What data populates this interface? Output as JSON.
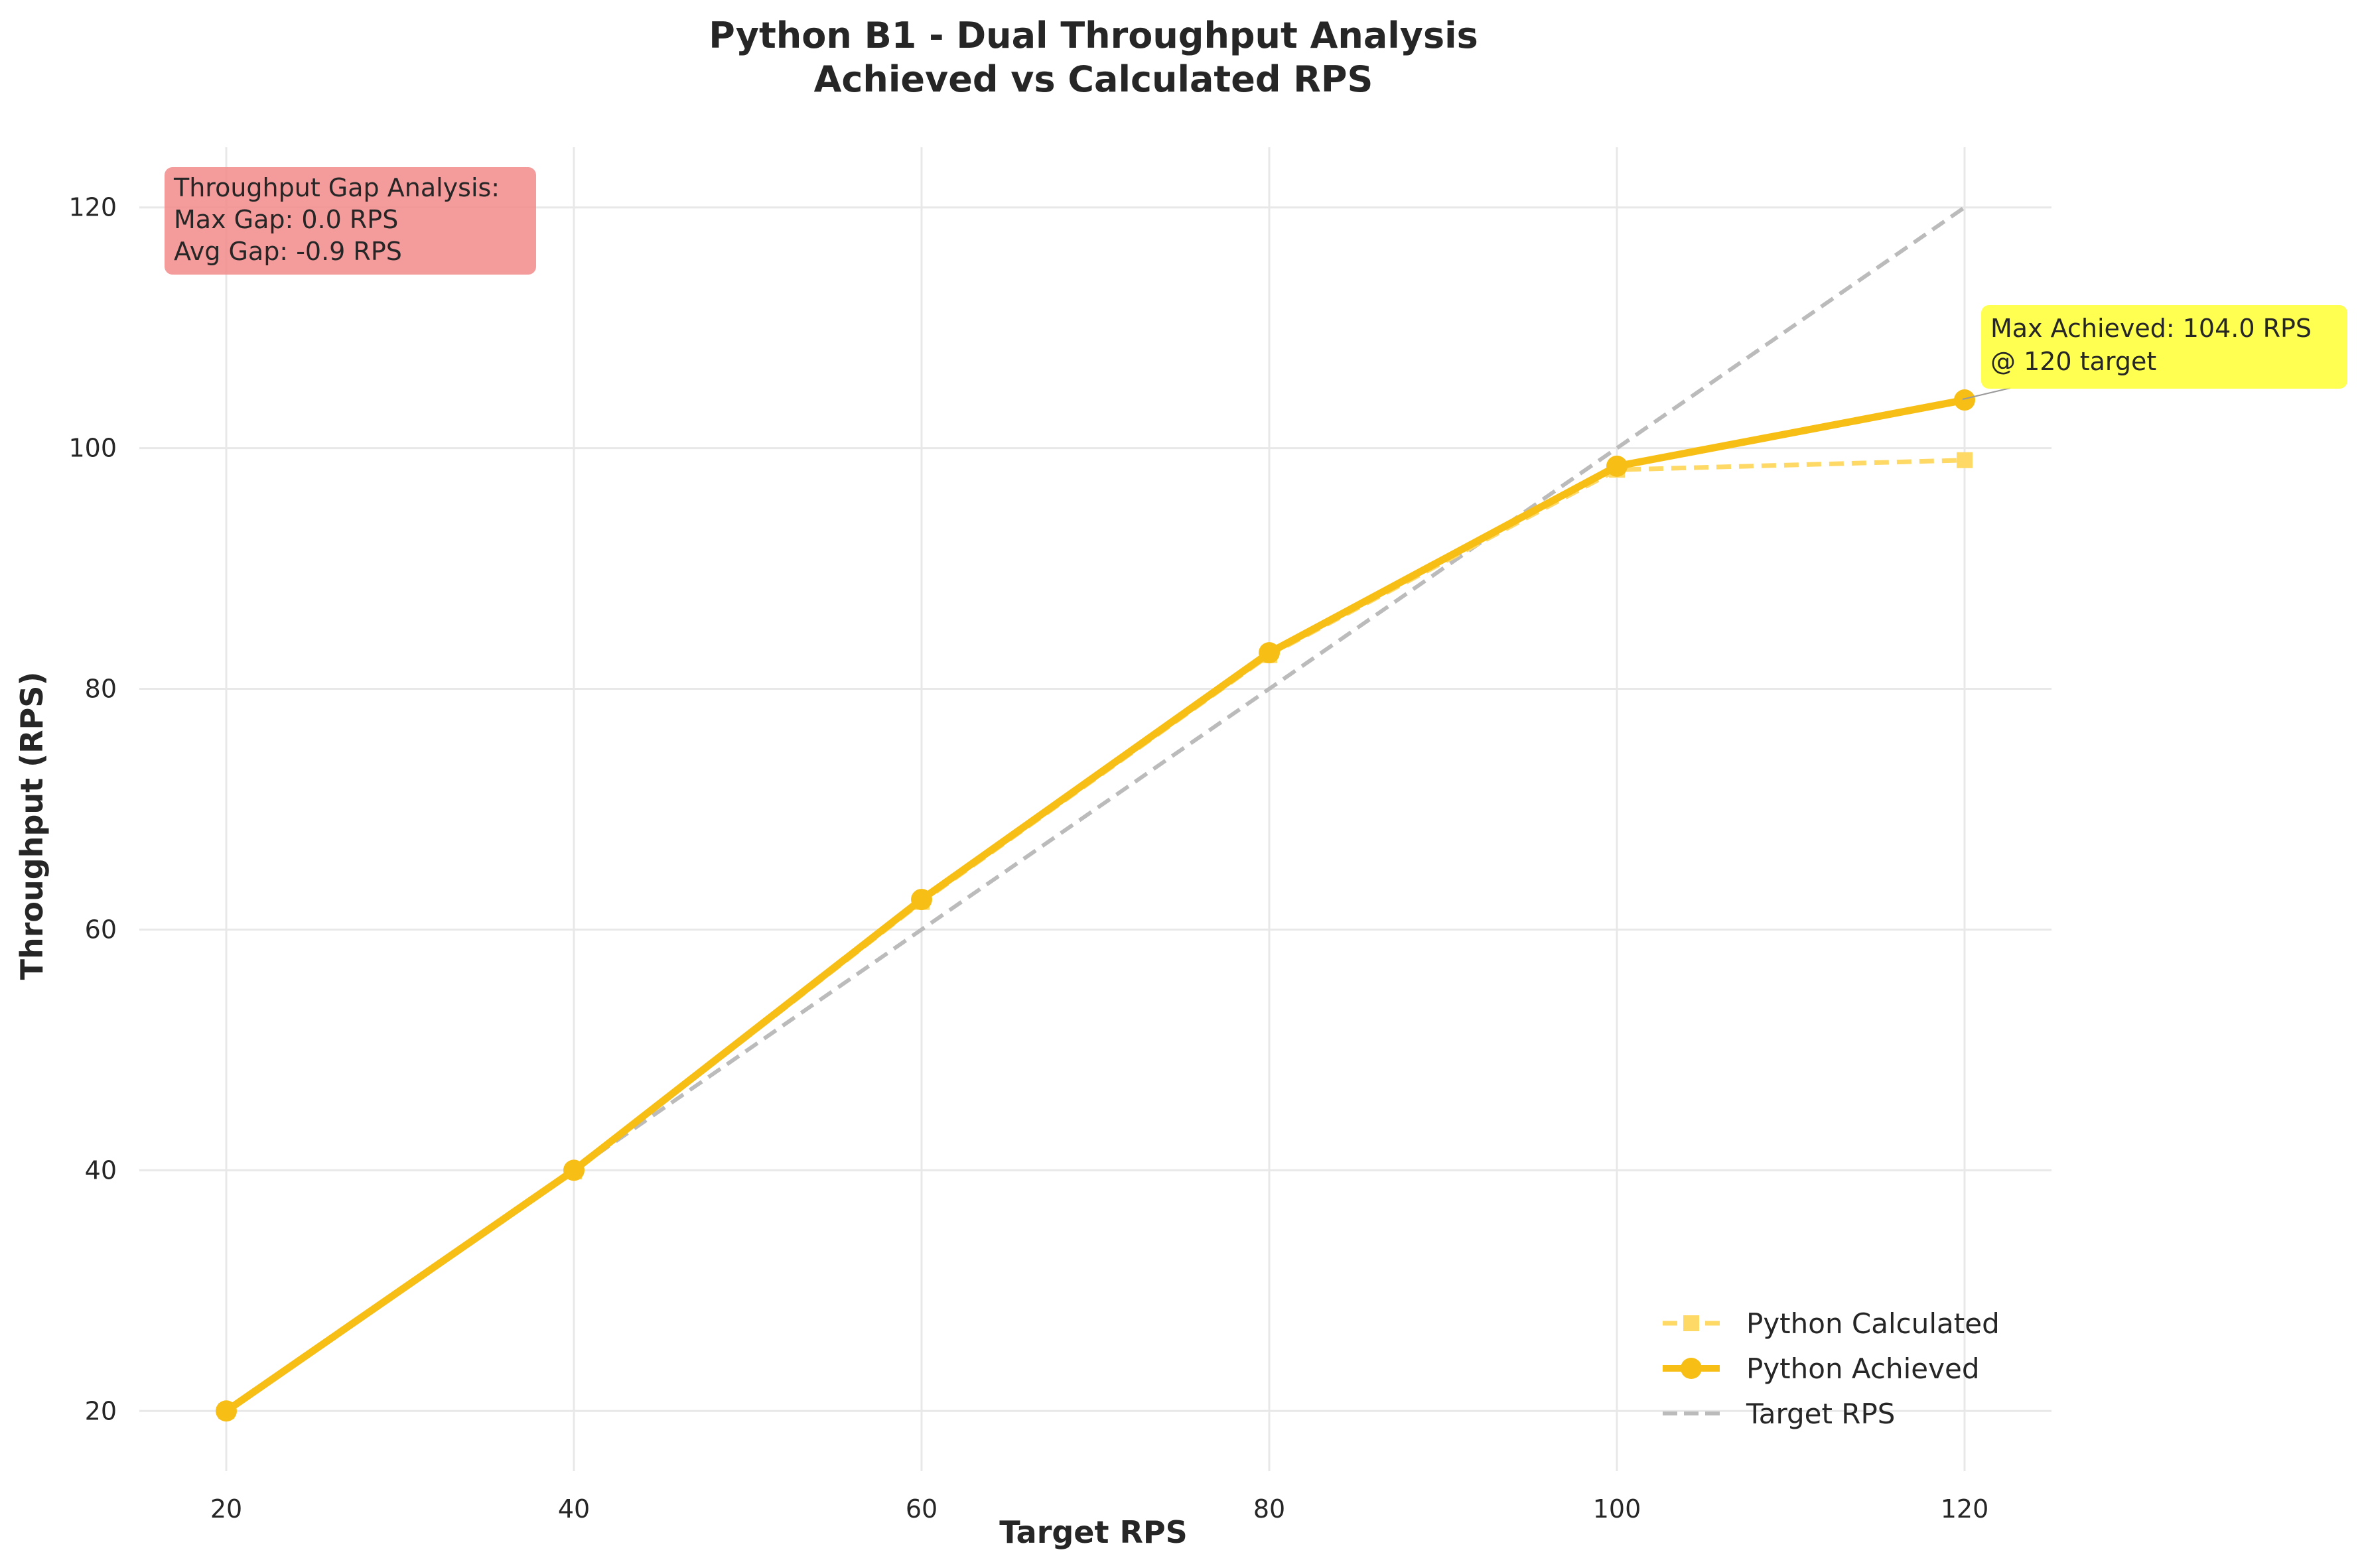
{
  "chart_data": {
    "type": "line",
    "title": "Python B1 - Dual Throughput Analysis",
    "subtitle": "Achieved vs Calculated RPS",
    "xlabel": "Target RPS",
    "ylabel": "Throughput (RPS)",
    "x": [
      20,
      40,
      60,
      80,
      100,
      120
    ],
    "xlim": [
      15,
      125
    ],
    "ylim": [
      15,
      125
    ],
    "xticks": [
      20,
      40,
      60,
      80,
      100,
      120
    ],
    "yticks": [
      20,
      40,
      60,
      80,
      100,
      120
    ],
    "grid": true,
    "legend_position": "lower-right",
    "series": [
      {
        "name": "Python Calculated",
        "values": [
          20.0,
          39.9,
          62.3,
          82.8,
          98.2,
          99.0
        ],
        "color": "#FFD966",
        "style": "dashed",
        "marker": "square"
      },
      {
        "name": "Python Achieved",
        "values": [
          20.0,
          40.0,
          62.5,
          83.0,
          98.5,
          104.0
        ],
        "color": "#F7BE16",
        "style": "solid",
        "marker": "circle"
      },
      {
        "name": "Target RPS",
        "values": [
          20,
          40,
          60,
          80,
          100,
          120
        ],
        "color": "#BBBBBB",
        "style": "dashed",
        "marker": "none"
      }
    ],
    "annotations": {
      "gap_box": {
        "lines": [
          "Throughput Gap Analysis:",
          "Max Gap: 0.0 RPS",
          "Avg Gap: -0.9 RPS"
        ],
        "color": "#F28B8B"
      },
      "max_box": {
        "lines": [
          "Max Achieved: 104.0 RPS",
          "@ 120 target"
        ],
        "color": "#FFFF33",
        "x": 120,
        "y": 104.0
      }
    }
  }
}
